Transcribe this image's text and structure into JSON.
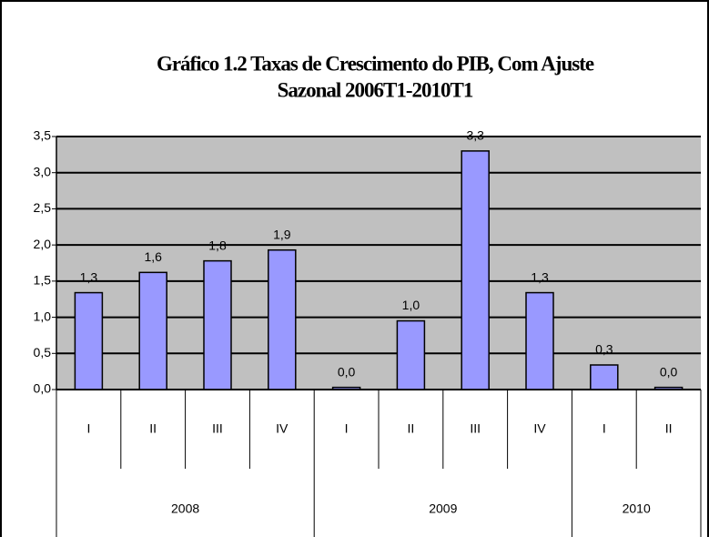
{
  "chart_data": {
    "type": "bar",
    "title": [
      "Gráfico 1.2 Taxas de Crescimento do PIB, Com Ajuste",
      "Sazonal 2006T1-2010T1"
    ],
    "groups": [
      {
        "name": "2008",
        "categories": [
          "I",
          "II",
          "III",
          "IV"
        ]
      },
      {
        "name": "2009",
        "categories": [
          "I",
          "II",
          "III",
          "IV"
        ]
      },
      {
        "name": "2010",
        "categories": [
          "I",
          "II"
        ]
      }
    ],
    "values": [
      1.34,
      1.62,
      1.78,
      1.93,
      0.03,
      0.95,
      3.3,
      1.34,
      0.34,
      0.03
    ],
    "value_labels": [
      "1,3",
      "1,6",
      "1,8",
      "1,9",
      "0,0",
      "1,0",
      "3,3",
      "1,3",
      "0,3",
      "0,0"
    ],
    "color": "#9999ff",
    "ylim": [
      0,
      3.5
    ],
    "yticks": [
      {
        "value": 0,
        "label": "0,0"
      },
      {
        "value": 0.5,
        "label": "0,5"
      },
      {
        "value": 1,
        "label": "1,0"
      },
      {
        "value": 1.5,
        "label": "1,5"
      },
      {
        "value": 2,
        "label": "2,0"
      },
      {
        "value": 2.5,
        "label": "2,5"
      },
      {
        "value": 3,
        "label": "3,0"
      },
      {
        "value": 3.5,
        "label": "3,5"
      }
    ],
    "grid": true
  }
}
